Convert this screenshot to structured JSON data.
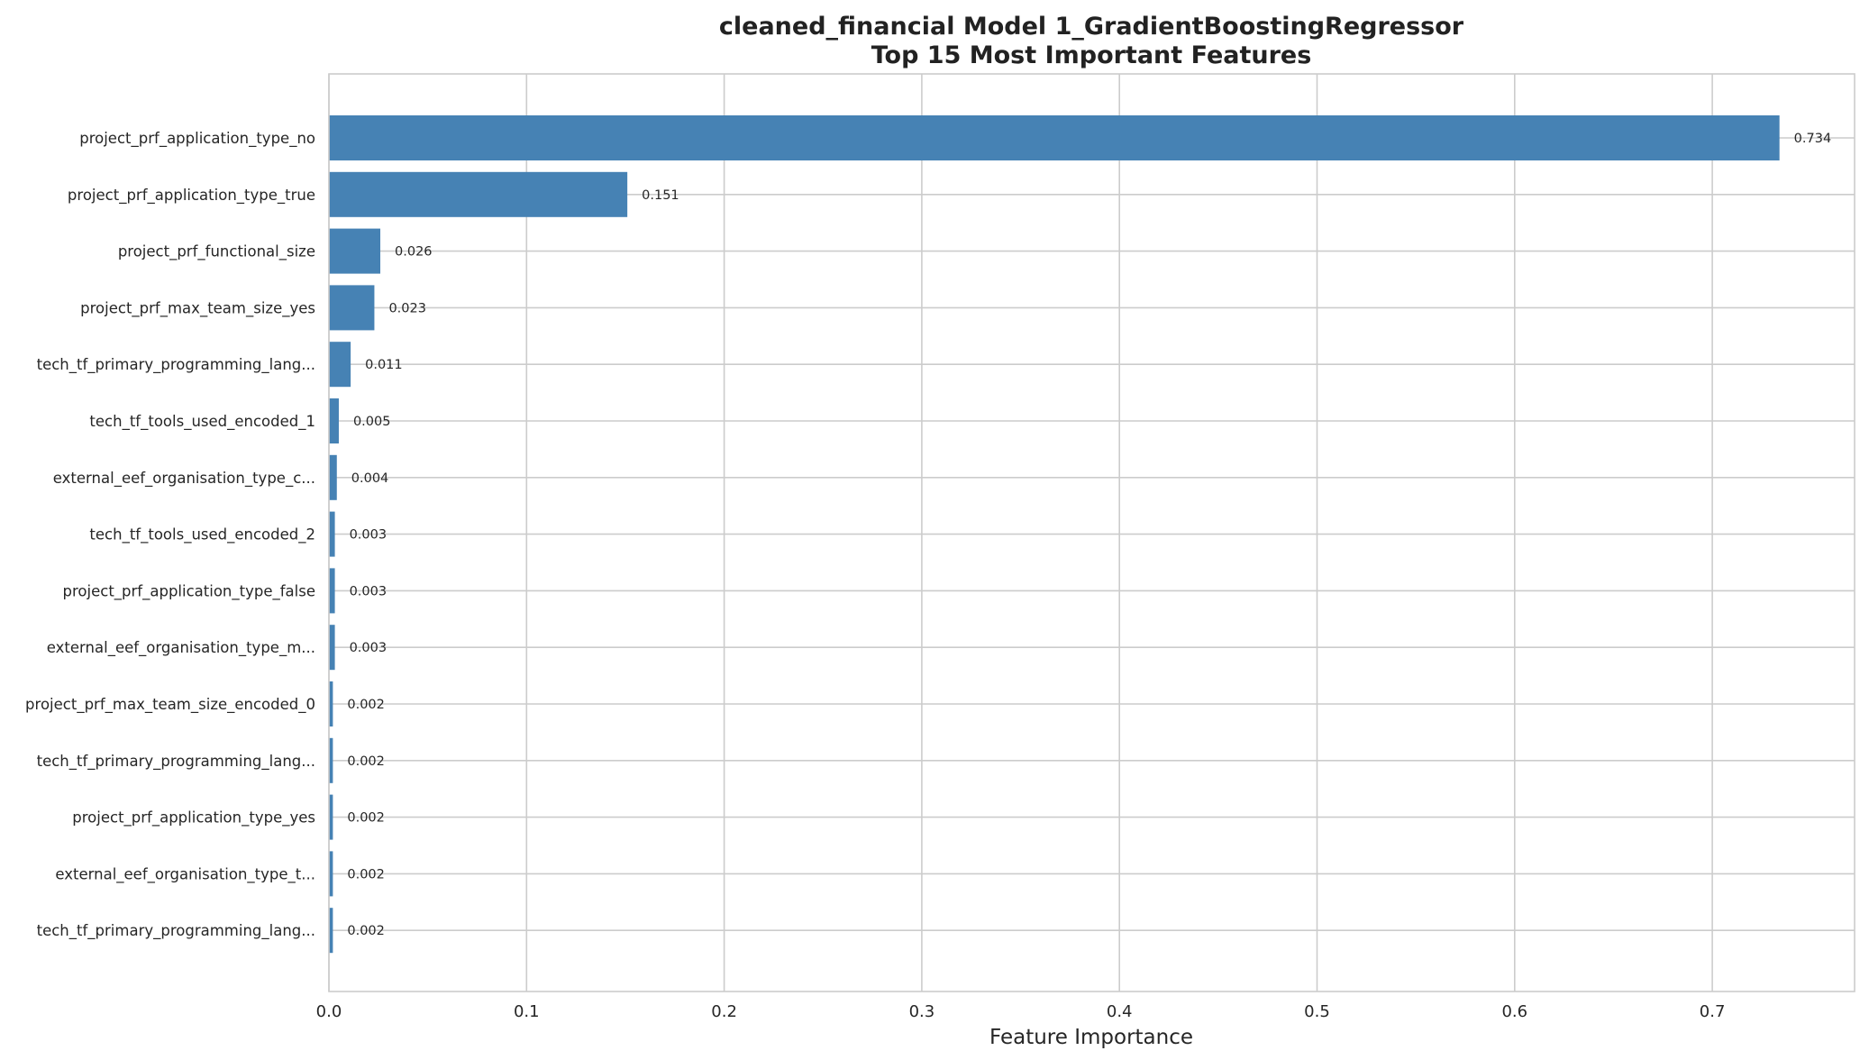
{
  "chart_data": {
    "type": "bar",
    "orientation": "horizontal",
    "title_line1": "cleaned_financial Model 1_GradientBoostingRegressor",
    "title_line2": "Top 15 Most Important Features",
    "xlabel": "Feature Importance",
    "ylabel": "",
    "xlim": [
      0,
      0.772
    ],
    "xticks": [
      "0.0",
      "0.1",
      "0.2",
      "0.3",
      "0.4",
      "0.5",
      "0.6",
      "0.7"
    ],
    "grid": true,
    "bar_color": "#4682b4",
    "categories": [
      "project_prf_application_type_no",
      "project_prf_application_type_true",
      "project_prf_functional_size",
      "project_prf_max_team_size_yes",
      "tech_tf_primary_programming_lang...",
      "tech_tf_tools_used_encoded_1",
      "external_eef_organisation_type_c...",
      "tech_tf_tools_used_encoded_2",
      "project_prf_application_type_false",
      "external_eef_organisation_type_m...",
      "project_prf_max_team_size_encoded_0",
      "tech_tf_primary_programming_lang...",
      "project_prf_application_type_yes",
      "external_eef_organisation_type_t...",
      "tech_tf_primary_programming_lang..."
    ],
    "values": [
      0.734,
      0.151,
      0.026,
      0.023,
      0.011,
      0.005,
      0.004,
      0.003,
      0.003,
      0.003,
      0.002,
      0.002,
      0.002,
      0.002,
      0.002
    ],
    "value_labels": [
      "0.734",
      "0.151",
      "0.026",
      "0.023",
      "0.011",
      "0.005",
      "0.004",
      "0.003",
      "0.003",
      "0.003",
      "0.002",
      "0.002",
      "0.002",
      "0.002",
      "0.002"
    ]
  }
}
